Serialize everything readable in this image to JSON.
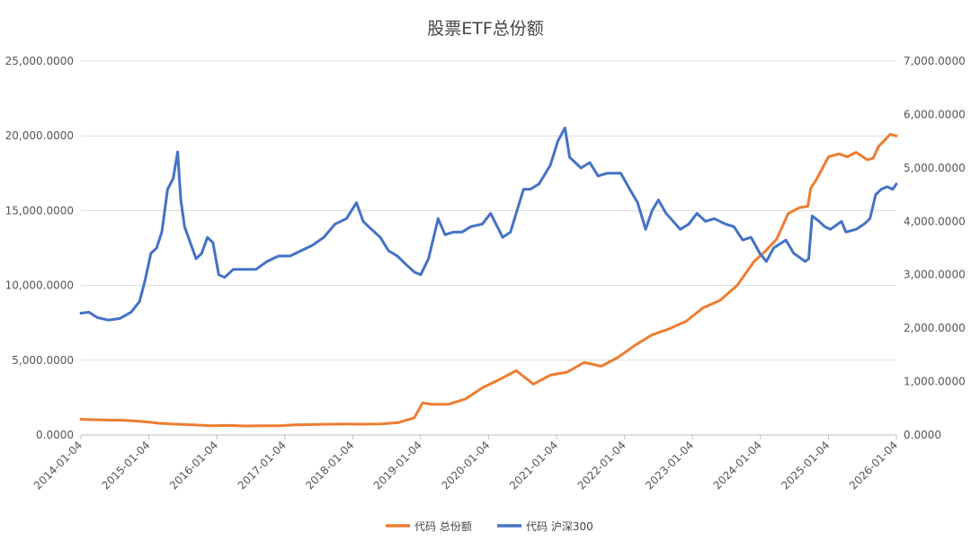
{
  "chart_data": {
    "type": "line",
    "title": "股票ETF总份额",
    "x_ticks": [
      "2014-01-04",
      "2015-01-04",
      "2016-01-04",
      "2017-01-04",
      "2018-01-04",
      "2019-01-04",
      "2020-01-04",
      "2021-01-04",
      "2022-01-04",
      "2023-01-04",
      "2024-01-04",
      "2025-01-04",
      "2026-01-04"
    ],
    "y_left": {
      "ticks": [
        "0.0000",
        "5,000.0000",
        "10,000.0000",
        "15,000.0000",
        "20,000.0000",
        "25,000.0000"
      ],
      "lim": [
        0,
        25000
      ]
    },
    "y_right": {
      "ticks": [
        "0.0000",
        "1,000.0000",
        "2,000.0000",
        "3,000.0000",
        "4,000.0000",
        "5,000.0000",
        "6,000.0000",
        "7,000.0000"
      ],
      "lim": [
        0,
        7000
      ]
    },
    "grid": true,
    "legend_position": "bottom-center",
    "series": [
      {
        "name": "代码 总份额",
        "axis": "left",
        "color": "#ED7D31",
        "x": [
          "2014-01-04",
          "2014-03-01",
          "2014-06-01",
          "2014-09-01",
          "2014-12-01",
          "2015-03-01",
          "2015-06-01",
          "2015-09-01",
          "2015-12-01",
          "2016-03-01",
          "2016-06-01",
          "2016-09-01",
          "2016-12-01",
          "2017-03-01",
          "2017-06-01",
          "2017-09-01",
          "2017-12-01",
          "2018-03-01",
          "2018-06-01",
          "2018-09-01",
          "2018-12-01",
          "2019-01-15",
          "2019-03-01",
          "2019-06-01",
          "2019-09-01",
          "2019-12-01",
          "2020-03-01",
          "2020-06-01",
          "2020-09-01",
          "2020-12-01",
          "2021-03-01",
          "2021-06-01",
          "2021-09-01",
          "2021-12-01",
          "2022-03-01",
          "2022-06-01",
          "2022-09-01",
          "2022-12-01",
          "2023-03-01",
          "2023-06-01",
          "2023-09-01",
          "2023-12-01",
          "2024-02-01",
          "2024-04-01",
          "2024-06-01",
          "2024-08-01",
          "2024-09-15",
          "2024-10-01",
          "2024-11-01",
          "2025-01-04",
          "2025-03-01",
          "2025-04-15",
          "2025-06-01",
          "2025-08-01",
          "2025-09-01",
          "2025-10-01",
          "2025-11-01",
          "2025-12-01",
          "2026-01-04"
        ],
        "values": [
          1050,
          1020,
          1000,
          980,
          900,
          780,
          720,
          680,
          620,
          640,
          600,
          610,
          620,
          680,
          700,
          720,
          730,
          720,
          740,
          820,
          1150,
          2150,
          2050,
          2050,
          2400,
          3150,
          3700,
          4300,
          3400,
          4000,
          4200,
          4850,
          4600,
          5200,
          6000,
          6700,
          7100,
          7600,
          8500,
          9000,
          10000,
          11600,
          12300,
          13100,
          14800,
          15200,
          15300,
          16500,
          17100,
          18600,
          18800,
          18600,
          18900,
          18400,
          18500,
          19300,
          19700,
          20100,
          20000
        ]
      },
      {
        "name": "代码 沪深300",
        "axis": "right",
        "color": "#4472C4",
        "x": [
          "2014-01-04",
          "2014-02-15",
          "2014-04-01",
          "2014-06-01",
          "2014-08-01",
          "2014-10-01",
          "2014-11-15",
          "2014-12-15",
          "2015-01-15",
          "2015-02-15",
          "2015-03-15",
          "2015-04-15",
          "2015-05-15",
          "2015-06-08",
          "2015-06-25",
          "2015-07-15",
          "2015-08-15",
          "2015-09-15",
          "2015-10-15",
          "2015-11-15",
          "2015-12-15",
          "2016-01-15",
          "2016-02-15",
          "2016-04-01",
          "2016-06-01",
          "2016-08-01",
          "2016-10-01",
          "2016-12-01",
          "2017-02-01",
          "2017-04-01",
          "2017-06-01",
          "2017-08-01",
          "2017-10-01",
          "2017-12-01",
          "2018-01-24",
          "2018-03-01",
          "2018-04-15",
          "2018-06-01",
          "2018-07-15",
          "2018-09-01",
          "2018-10-15",
          "2018-12-01",
          "2019-01-04",
          "2019-02-15",
          "2019-04-08",
          "2019-05-15",
          "2019-07-01",
          "2019-08-15",
          "2019-10-01",
          "2019-12-01",
          "2020-01-15",
          "2020-03-20",
          "2020-05-01",
          "2020-07-10",
          "2020-08-15",
          "2020-10-01",
          "2020-12-01",
          "2021-01-10",
          "2021-02-18",
          "2021-03-15",
          "2021-05-15",
          "2021-07-01",
          "2021-08-15",
          "2021-10-01",
          "2021-12-15",
          "2022-02-01",
          "2022-03-15",
          "2022-04-27",
          "2022-06-01",
          "2022-07-05",
          "2022-08-15",
          "2022-10-31",
          "2022-12-15",
          "2023-01-28",
          "2023-03-15",
          "2023-05-01",
          "2023-07-01",
          "2023-08-15",
          "2023-10-01",
          "2023-11-15",
          "2024-01-01",
          "2024-02-05",
          "2024-03-15",
          "2024-05-20",
          "2024-07-01",
          "2024-09-01",
          "2024-09-20",
          "2024-10-08",
          "2024-11-15",
          "2024-12-15",
          "2025-01-15",
          "2025-03-15",
          "2025-04-08",
          "2025-06-01",
          "2025-07-15",
          "2025-08-15",
          "2025-09-15",
          "2025-10-15",
          "2025-11-15",
          "2025-12-15",
          "2026-01-04"
        ],
        "values": [
          2280,
          2300,
          2200,
          2150,
          2180,
          2300,
          2500,
          2900,
          3400,
          3500,
          3800,
          4600,
          4800,
          5300,
          4400,
          3900,
          3600,
          3300,
          3400,
          3700,
          3600,
          3000,
          2950,
          3100,
          3100,
          3100,
          3250,
          3350,
          3350,
          3450,
          3550,
          3700,
          3950,
          4050,
          4350,
          4000,
          3850,
          3700,
          3450,
          3350,
          3200,
          3050,
          3000,
          3300,
          4050,
          3750,
          3800,
          3800,
          3900,
          3950,
          4150,
          3700,
          3800,
          4600,
          4600,
          4700,
          5050,
          5500,
          5750,
          5200,
          5000,
          5100,
          4850,
          4900,
          4900,
          4600,
          4350,
          3850,
          4200,
          4400,
          4150,
          3850,
          3950,
          4150,
          4000,
          4050,
          3950,
          3900,
          3650,
          3700,
          3400,
          3250,
          3500,
          3650,
          3400,
          3250,
          3300,
          4100,
          4000,
          3900,
          3850,
          4000,
          3800,
          3850,
          3950,
          4050,
          4500,
          4600,
          4650,
          4600,
          4700
        ]
      }
    ]
  }
}
